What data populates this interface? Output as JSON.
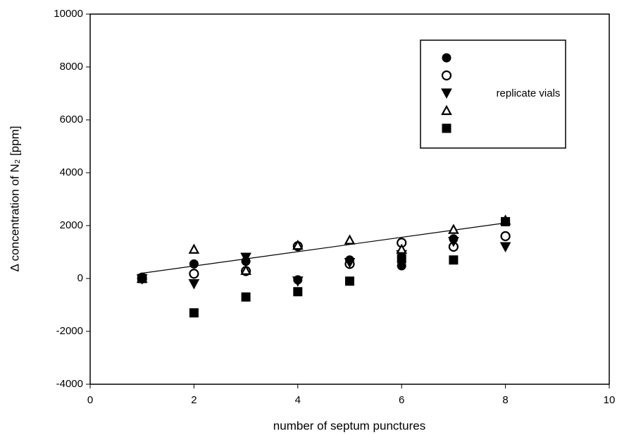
{
  "chart_data": {
    "type": "scatter",
    "x_label": "number of septum punctures",
    "y_label": "Δ concentration of N₂ [ppm]",
    "xlim": [
      0,
      10
    ],
    "xticks": [
      0,
      2,
      4,
      6,
      8,
      10
    ],
    "ylim": [
      -4000,
      10000
    ],
    "yticks": [
      -4000,
      -2000,
      0,
      2000,
      4000,
      6000,
      8000,
      10000
    ],
    "grid": false,
    "legend_position": "upper right",
    "legend_label": "replicate vials",
    "x": [
      1,
      2,
      3,
      4,
      5,
      6,
      7,
      8
    ],
    "series": [
      {
        "marker": "circle",
        "filled": true,
        "color": "#000000",
        "values": [
          50,
          550,
          650,
          -50,
          700,
          480,
          1500,
          2150
        ]
      },
      {
        "marker": "circle",
        "filled": false,
        "color": "#000000",
        "values": [
          0,
          180,
          280,
          1220,
          550,
          1350,
          1200,
          1600
        ]
      },
      {
        "marker": "triangle-down",
        "filled": true,
        "color": "#000000",
        "values": [
          -20,
          -200,
          800,
          -100,
          600,
          900,
          1400,
          1200
        ]
      },
      {
        "marker": "triangle-up",
        "filled": false,
        "color": "#000000",
        "values": [
          0,
          1100,
          300,
          1250,
          1450,
          1100,
          1850,
          2200
        ]
      },
      {
        "marker": "square",
        "filled": true,
        "color": "#000000",
        "values": [
          0,
          -1300,
          -700,
          -500,
          -100,
          750,
          700,
          2150
        ]
      }
    ],
    "trendline": {
      "x": [
        1,
        8
      ],
      "values": [
        200,
        2100
      ],
      "color": "#000000"
    }
  }
}
